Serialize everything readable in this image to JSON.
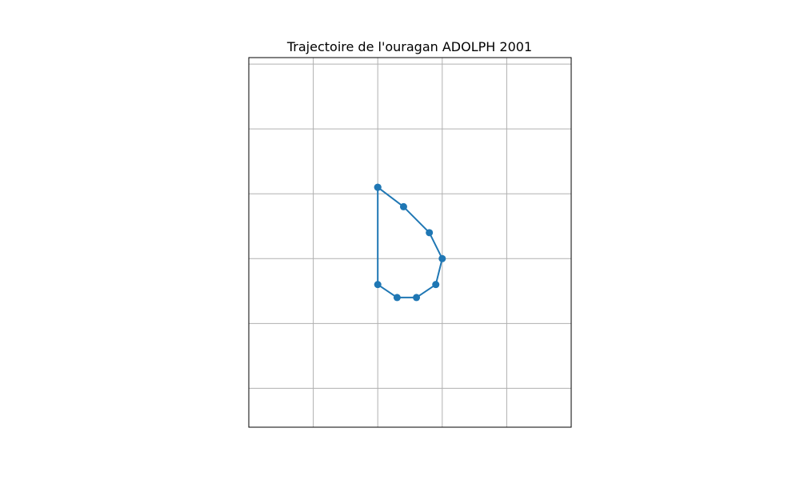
{
  "chart_data": {
    "type": "line",
    "title": "Trajectoire de l'ouragan ADOLPH 2001",
    "xlabel": "",
    "ylabel": "",
    "grid": true,
    "xlim": [
      -1.0,
      4.0
    ],
    "ylim": [
      -2.6,
      3.1
    ],
    "x_gridlines": [
      0,
      1,
      2,
      3
    ],
    "y_gridlines": [
      -2,
      -1,
      0,
      1,
      2,
      3
    ],
    "series": [
      {
        "name": "",
        "color": "#1f77b4",
        "x": [
          1.0,
          1.4,
          1.8,
          2.0,
          1.9,
          1.6,
          1.3,
          1.0,
          1.0
        ],
        "y": [
          1.1,
          0.8,
          0.4,
          0.0,
          -0.4,
          -0.6,
          -0.6,
          -0.4,
          1.1
        ]
      }
    ]
  }
}
